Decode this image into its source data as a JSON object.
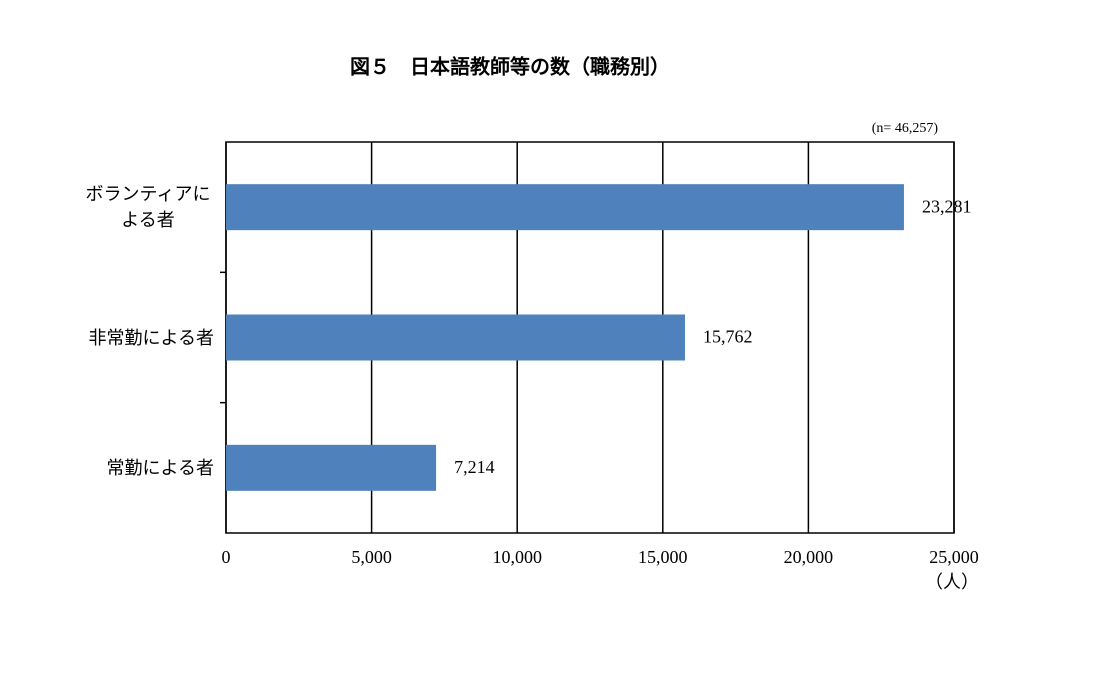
{
  "chart_data": {
    "type": "bar",
    "orientation": "horizontal",
    "title": "図５　日本語教師等の数（職務別）",
    "annotation": "(n=  46,257)",
    "x_unit": "（人）",
    "categories": [
      "ボランティアによる者",
      "非常勤による者",
      "常勤による者"
    ],
    "values": [
      23281,
      15762,
      7214
    ],
    "value_labels": [
      "23,281",
      "15,762",
      "7,214"
    ],
    "color": "#4f81bd",
    "xlim": [
      0,
      25000
    ],
    "xticks": [
      0,
      {
        "value": 5000,
        "label": "5,000"
      },
      {
        "value": 10000,
        "label": "10,000"
      },
      {
        "value": 15000,
        "label": "15,000"
      },
      {
        "value": 20000,
        "label": "20,000"
      },
      {
        "value": 25000,
        "label": "25,000"
      }
    ],
    "grid": true
  }
}
